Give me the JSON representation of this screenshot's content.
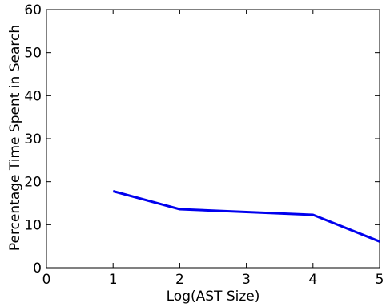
{
  "chart_data": {
    "type": "line",
    "title": "",
    "xlabel": "Log(AST Size)",
    "ylabel": "Percentage Time Spent in Search",
    "xlim": [
      0,
      5
    ],
    "ylim": [
      0,
      60
    ],
    "x_ticks": [
      "0",
      "1",
      "2",
      "3",
      "4",
      "5"
    ],
    "y_ticks": [
      "0",
      "10",
      "20",
      "30",
      "40",
      "50",
      "60"
    ],
    "grid": false,
    "legend": "none",
    "series": [
      {
        "color": "#0000ee",
        "x": [
          1,
          2,
          4,
          5
        ],
        "y": [
          17.8,
          13.6,
          12.3,
          6.1
        ]
      }
    ]
  }
}
